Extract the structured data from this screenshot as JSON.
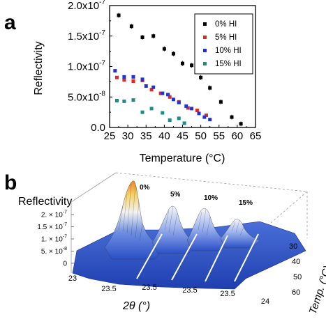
{
  "panels": {
    "a_label": "a",
    "b_label": "b"
  },
  "chart_data": [
    {
      "type": "scatter",
      "panel": "a",
      "xlabel": "Temperature (°C)",
      "ylabel": "Reflectivity",
      "xlim": [
        25,
        65
      ],
      "ylim": [
        0,
        2e-07
      ],
      "x_ticks": [
        "25",
        "30",
        "35",
        "40",
        "45",
        "50",
        "55",
        "60",
        "65"
      ],
      "y_ticks": [
        "0.0",
        "5.0x10",
        "1.0x10",
        "1.5x10",
        "2.0x10"
      ],
      "y_tick_exponents": [
        "",
        "-8",
        "-7",
        "-7",
        "-7"
      ],
      "y_tick_values": [
        0,
        5e-08,
        1e-07,
        1.5e-07,
        2e-07
      ],
      "grid": false,
      "legend_position": "top-right",
      "series": [
        {
          "name": "0% HI",
          "color": "#000000",
          "points": [
            [
              27.5,
              1.84e-07
            ],
            [
              31,
              1.66e-07
            ],
            [
              34,
              1.48e-07
            ],
            [
              37,
              1.5e-07
            ],
            [
              40,
              1.29e-07
            ],
            [
              42.5,
              1.21e-07
            ],
            [
              45,
              1.05e-07
            ],
            [
              47.5,
              1.02e-07
            ],
            [
              50,
              8.2e-08
            ],
            [
              52.5,
              6.5e-08
            ],
            [
              55.5,
              4.2e-08
            ],
            [
              58.5,
              1.7e-08
            ],
            [
              61,
              6e-09
            ]
          ]
        },
        {
          "name": "5% HI",
          "color": "#e8251f",
          "points": [
            [
              27,
              8.2e-08
            ],
            [
              29,
              7.8e-08
            ],
            [
              31.5,
              7.6e-08
            ],
            [
              34,
              7.7e-08
            ],
            [
              36.5,
              6.2e-08
            ],
            [
              39,
              5.6e-08
            ],
            [
              41.5,
              5e-08
            ],
            [
              44,
              4.2e-08
            ],
            [
              46.5,
              3.2e-08
            ],
            [
              49,
              2.8e-08
            ],
            [
              51.5,
              2e-08
            ]
          ]
        },
        {
          "name": "10% HI",
          "color": "#1f32d6",
          "points": [
            [
              26.5,
              9.3e-08
            ],
            [
              29,
              8.3e-08
            ],
            [
              31.5,
              8.3e-08
            ],
            [
              34,
              7.9e-08
            ],
            [
              35,
              6.8e-08
            ],
            [
              37,
              6.6e-08
            ],
            [
              39.5,
              5.6e-08
            ],
            [
              41,
              5.4e-08
            ],
            [
              42.5,
              4.6e-08
            ],
            [
              44,
              4.1e-08
            ],
            [
              46,
              3.5e-08
            ],
            [
              47.5,
              3.1e-08
            ],
            [
              49.5,
              2.3e-08
            ],
            [
              51,
              1.7e-08
            ],
            [
              52.5,
              1.3e-08
            ]
          ]
        },
        {
          "name": "15% HI",
          "color": "#1a8c8c",
          "points": [
            [
              27,
              4.4e-08
            ],
            [
              29,
              4.3e-08
            ],
            [
              31.5,
              4.5e-08
            ],
            [
              34,
              2.5e-08
            ],
            [
              36.5,
              3.1e-08
            ],
            [
              39.5,
              2.4e-08
            ],
            [
              41.5,
              1.2e-08
            ],
            [
              44,
              1.5e-08
            ],
            [
              45.5,
              7e-09
            ]
          ]
        }
      ]
    },
    {
      "type": "surface",
      "panel": "b",
      "zlabel": "Reflectivity",
      "xlabel": "2θ (°)",
      "ylabel": "Temp. (°C)",
      "z_ticks": [
        "0",
        "5. × 10",
        "1. × 10",
        "1.5 × 10",
        "2. × 10"
      ],
      "z_tick_exponents": [
        "",
        "-8",
        "-7",
        "-7",
        "-7"
      ],
      "x_ticks": [
        "23",
        "23.5",
        "23.5",
        "23.5",
        "23.5",
        "24"
      ],
      "y_ticks": [
        "30",
        "40",
        "50",
        "60"
      ],
      "panel_labels": [
        "0%",
        "5%",
        "10%",
        "15%"
      ],
      "peak_heights": [
        2e-07,
        1e-07,
        9e-08,
        4.5e-08
      ]
    }
  ]
}
